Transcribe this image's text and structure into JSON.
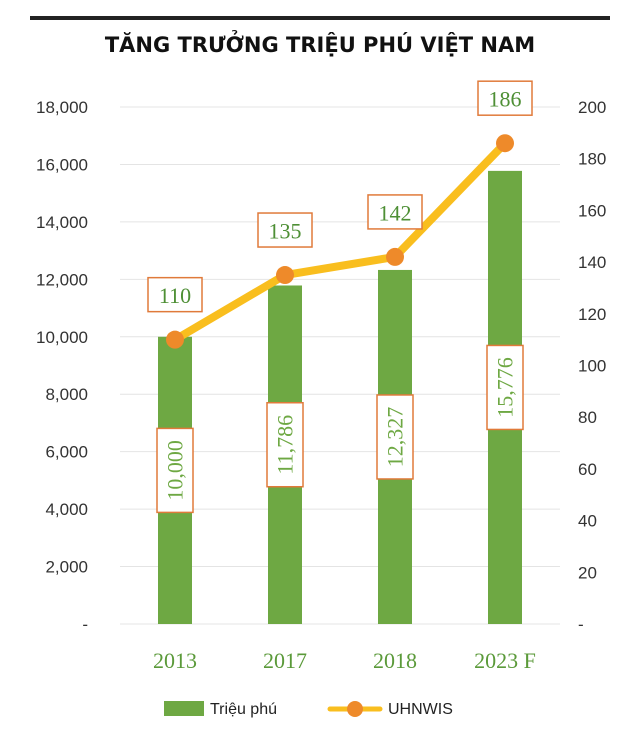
{
  "chart_data": {
    "type": "bar",
    "title": "TĂNG TRƯỞNG TRIỆU PHÚ VIỆT NAM",
    "categories": [
      "2013",
      "2017",
      "2018",
      "2023 F"
    ],
    "series": [
      {
        "name": "Triệu phú",
        "type": "bar",
        "axis": "left",
        "values": [
          10000,
          11786,
          12327,
          15776
        ],
        "labels": [
          "10,000",
          "11,786",
          "12,327",
          "15,776"
        ],
        "color": "#6EA843"
      },
      {
        "name": "UHNWIS",
        "type": "line",
        "axis": "right",
        "values": [
          110,
          135,
          142,
          186
        ],
        "labels": [
          "110",
          "135",
          "142",
          "186"
        ],
        "color": "#F9BE1E",
        "marker_color": "#EE8A2A"
      }
    ],
    "y_left": {
      "range": [
        0,
        18000
      ],
      "ticks": [
        0,
        2000,
        4000,
        6000,
        8000,
        10000,
        12000,
        14000,
        16000,
        18000
      ],
      "tick_labels": [
        "-",
        "2,000",
        "4,000",
        "6,000",
        "8,000",
        "10,000",
        "12,000",
        "14,000",
        "16,000",
        "18,000"
      ]
    },
    "y_right": {
      "range": [
        0,
        200
      ],
      "ticks": [
        0,
        20,
        40,
        60,
        80,
        100,
        120,
        140,
        160,
        180,
        200
      ],
      "tick_labels": [
        "-",
        "20",
        "40",
        "60",
        "80",
        "100",
        "120",
        "140",
        "160",
        "180",
        "200"
      ]
    },
    "grid": true,
    "legend": "bottom",
    "colors": {
      "category_label": "#5B9A3A",
      "label_box_border": "#E07A3A",
      "label_text": "#6EA843",
      "line_label_text": "#4E8F35",
      "gridline": "#E4E4E4",
      "top_rule": "#222222"
    }
  }
}
